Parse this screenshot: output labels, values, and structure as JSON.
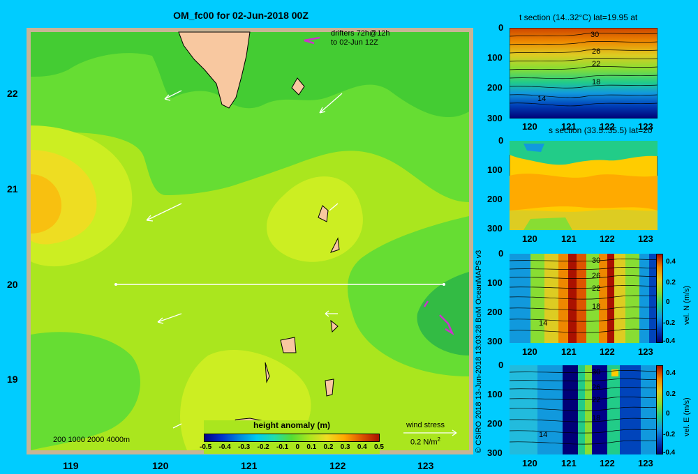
{
  "title": "OM_fc00 for 02-Jun-2018 00Z",
  "credit": "© CSIRO 2018   13-Jun-2018 13:03:28 BoM OceanMAPS v3",
  "map": {
    "lat_ticks": [
      "22",
      "21",
      "20",
      "19"
    ],
    "lon_ticks": [
      "119",
      "120",
      "121",
      "122",
      "123"
    ],
    "drifters_line1": "drifters 72h@12h",
    "drifters_line2": "to 02-Jun 12Z",
    "depth_legend": "200  1000  2000  4000m",
    "wind_stress_label": "wind stress",
    "wind_stress_scale": "0.2 N/m",
    "wind_stress_exp": "2",
    "section_lat": 20,
    "section_lon_range": [
      119.5,
      123.2
    ],
    "colorbar": {
      "title": "height anomaly (m)",
      "ticks": [
        "-0.5",
        "-0.4",
        "-0.3",
        "-0.2",
        "-0.1",
        "0",
        "0.1",
        "0.2",
        "0.3",
        "0.4",
        "0.5"
      ]
    }
  },
  "panels": [
    {
      "title": "t section (14..32°C) lat=19.95 at",
      "contours": [
        "30",
        "26",
        "22",
        "18",
        "14"
      ],
      "colorbar_unit": "",
      "colorbar_ticks": []
    },
    {
      "title": "s section (33.5..35.5) lat=20",
      "contours": [],
      "colorbar_unit": "",
      "colorbar_ticks": []
    },
    {
      "title": "",
      "contours": [
        "30",
        "26",
        "22",
        "18",
        "14"
      ],
      "colorbar_unit": "vel. N (m/s)",
      "colorbar_ticks": [
        "0.4",
        "0.2",
        "0",
        "-0.2",
        "-0.4"
      ]
    },
    {
      "title": "",
      "contours": [
        "30",
        "26",
        "22",
        "18",
        "14"
      ],
      "colorbar_unit": "vel. E (m/s)",
      "colorbar_ticks": [
        "0.4",
        "0.2",
        "0",
        "-0.2",
        "-0.4"
      ]
    }
  ],
  "section_axes": {
    "depth_ticks": [
      "0",
      "100",
      "200",
      "300"
    ],
    "lon_ticks": [
      "120",
      "121",
      "122",
      "123"
    ]
  },
  "colors": {
    "background": "#00ccff",
    "land": "#f8c8a0",
    "frame": "#c8b496",
    "drifter": "#cc33cc"
  }
}
